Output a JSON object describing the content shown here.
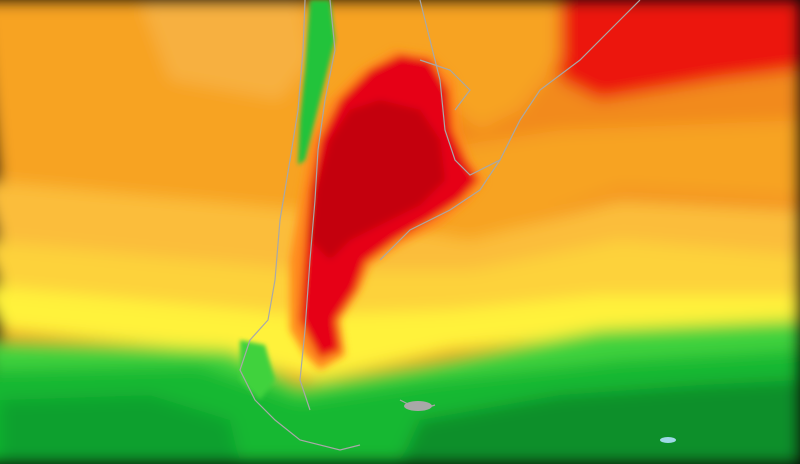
{
  "map": {
    "colors": {
      "orange_dark": "#f28a1a",
      "orange": "#f7a322",
      "light_orange": "#fbbd3a",
      "yellow_orange": "#fdd23a",
      "yellow": "#fff23a",
      "red": "#e60012",
      "dark_red": "#c4000e",
      "green_light": "#3fd23c",
      "green": "#18b832",
      "green_dark": "#0b8f2a",
      "coastline": "#a8a8a8"
    }
  }
}
